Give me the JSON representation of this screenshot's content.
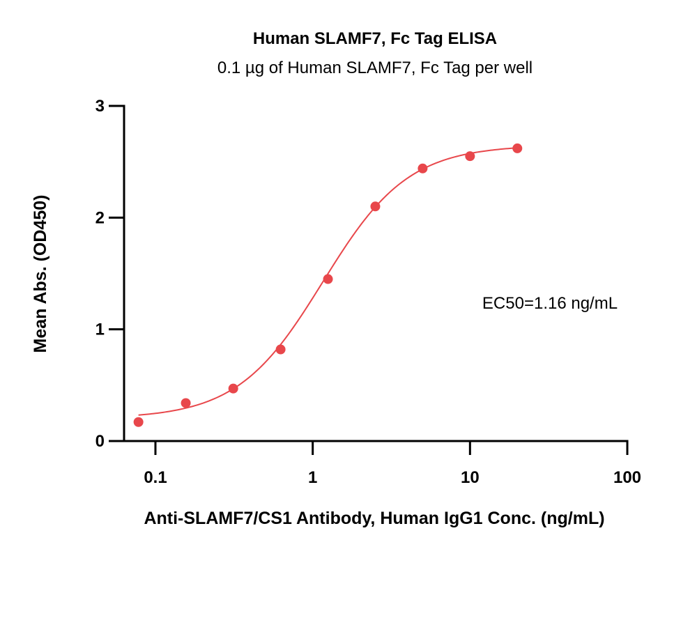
{
  "chart_data": {
    "type": "scatter",
    "title": "Human SLAMF7, Fc Tag ELISA",
    "subtitle": "0.1 µg of Human SLAMF7, Fc Tag per well",
    "xlabel": "Anti-SLAMF7/CS1 Antibody, Human IgG1 Conc. (ng/mL)",
    "ylabel": "Mean Abs. (OD450)",
    "x_scale": "log",
    "xlim": [
      0.07,
      100
    ],
    "ylim": [
      0,
      3
    ],
    "x_ticks": [
      {
        "value": 0.1,
        "label": "0.1"
      },
      {
        "value": 1,
        "label": "1"
      },
      {
        "value": 10,
        "label": "10"
      },
      {
        "value": 100,
        "label": "100"
      }
    ],
    "y_ticks": [
      {
        "value": 0,
        "label": "0"
      },
      {
        "value": 1,
        "label": "1"
      },
      {
        "value": 2,
        "label": "2"
      },
      {
        "value": 3,
        "label": "3"
      }
    ],
    "grid": false,
    "color": "#e8474b",
    "points": [
      {
        "x": 0.078,
        "y": 0.17
      },
      {
        "x": 0.156,
        "y": 0.34
      },
      {
        "x": 0.3125,
        "y": 0.47
      },
      {
        "x": 0.625,
        "y": 0.82
      },
      {
        "x": 1.25,
        "y": 1.45
      },
      {
        "x": 2.5,
        "y": 2.1
      },
      {
        "x": 5,
        "y": 2.44
      },
      {
        "x": 10,
        "y": 2.55
      },
      {
        "x": 20,
        "y": 2.62
      }
    ],
    "fit": {
      "bottom": 0.2,
      "top": 2.65,
      "ec50": 1.16,
      "hill": 1.6
    },
    "annotations": [
      {
        "text": "EC50=1.16 ng/mL",
        "position": "right-middle"
      }
    ]
  }
}
